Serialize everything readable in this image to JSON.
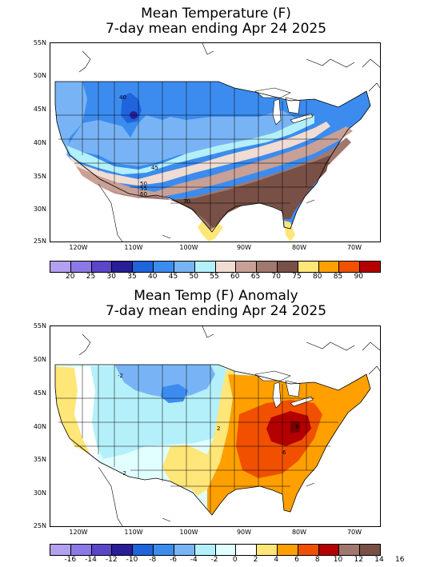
{
  "panels": [
    {
      "title_line1": "Mean Temperature (F)",
      "title_line2": "7-day mean ending Apr 24 2025",
      "lat_labels": [
        "55N",
        "50N",
        "45N",
        "40N",
        "35N",
        "30N",
        "25N"
      ],
      "lon_labels": [
        "120W",
        "110W",
        "100W",
        "90W",
        "80W",
        "70W"
      ],
      "contour_labels": [
        "40",
        "45",
        "50",
        "55",
        "60",
        "70"
      ],
      "colorbar": {
        "colors": [
          "#b4a0f0",
          "#8c78e6",
          "#5a46c8",
          "#281e96",
          "#1e64dc",
          "#3c8cf0",
          "#78b4f5",
          "#b4f0fa",
          "#f0dcd2",
          "#c8a096",
          "#a0786e",
          "#785046",
          "#ffe678",
          "#ffa000",
          "#f05000",
          "#b40000"
        ],
        "labels": [
          "20",
          "25",
          "30",
          "35",
          "40",
          "45",
          "50",
          "55",
          "60",
          "65",
          "70",
          "75",
          "80",
          "85",
          "90"
        ]
      }
    },
    {
      "title_line1": "Mean Temp (F) Anomaly",
      "title_line2": "7-day mean ending Apr 24 2025",
      "lat_labels": [
        "55N",
        "50N",
        "45N",
        "40N",
        "35N",
        "30N",
        "25N"
      ],
      "lon_labels": [
        "120W",
        "110W",
        "100W",
        "90W",
        "80W",
        "70W"
      ],
      "contour_labels": [
        "-2",
        "-2",
        "8",
        "6",
        "2"
      ],
      "colorbar": {
        "colors": [
          "#b4a0f0",
          "#8c78e6",
          "#5a46c8",
          "#281e96",
          "#1e64dc",
          "#3c8cf0",
          "#78b4f5",
          "#b4f0fa",
          "#e1ffff",
          "#ffffff",
          "#ffe678",
          "#ffa000",
          "#f05000",
          "#b40000",
          "#a0786e",
          "#785046"
        ],
        "labels": [
          "-16",
          "-14",
          "-12",
          "-10",
          "-8",
          "-6",
          "-4",
          "-2",
          "0",
          "2",
          "4",
          "6",
          "8",
          "10",
          "12",
          "14",
          "16"
        ]
      }
    }
  ]
}
